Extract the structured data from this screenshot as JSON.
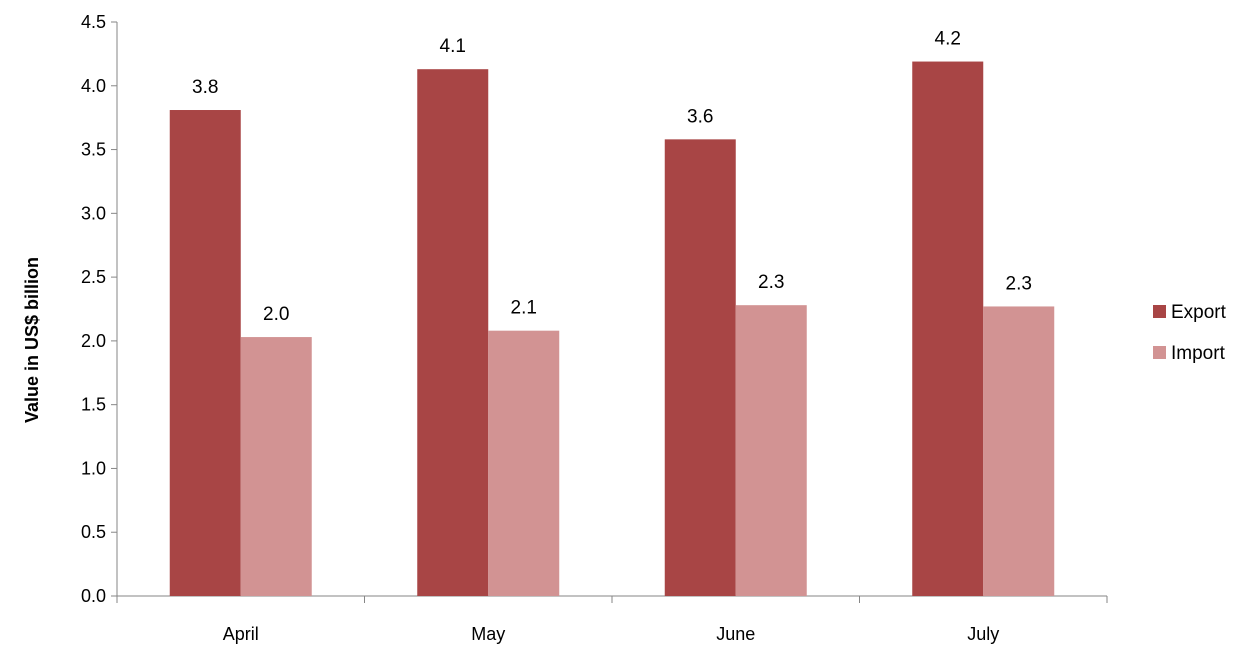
{
  "chart_data": {
    "type": "bar",
    "categories": [
      "April",
      "May",
      "June",
      "July"
    ],
    "series": [
      {
        "name": "Export",
        "values": [
          3.81,
          4.13,
          3.58,
          4.19
        ],
        "labels": [
          "3.8",
          "4.1",
          "3.6",
          "4.2"
        ],
        "color": "#a84545"
      },
      {
        "name": "Import",
        "values": [
          2.03,
          2.08,
          2.28,
          2.27
        ],
        "labels": [
          "2.0",
          "2.1",
          "2.3",
          "2.3"
        ],
        "color": "#d29393"
      }
    ],
    "title": "",
    "xlabel": "",
    "ylabel": "Value in US$ billion",
    "ylim": [
      0,
      4.5
    ],
    "yticks": [
      "0.0",
      "0.5",
      "1.0",
      "1.5",
      "2.0",
      "2.5",
      "3.0",
      "3.5",
      "4.0",
      "4.5"
    ],
    "grid": false,
    "legend_position": "right"
  }
}
